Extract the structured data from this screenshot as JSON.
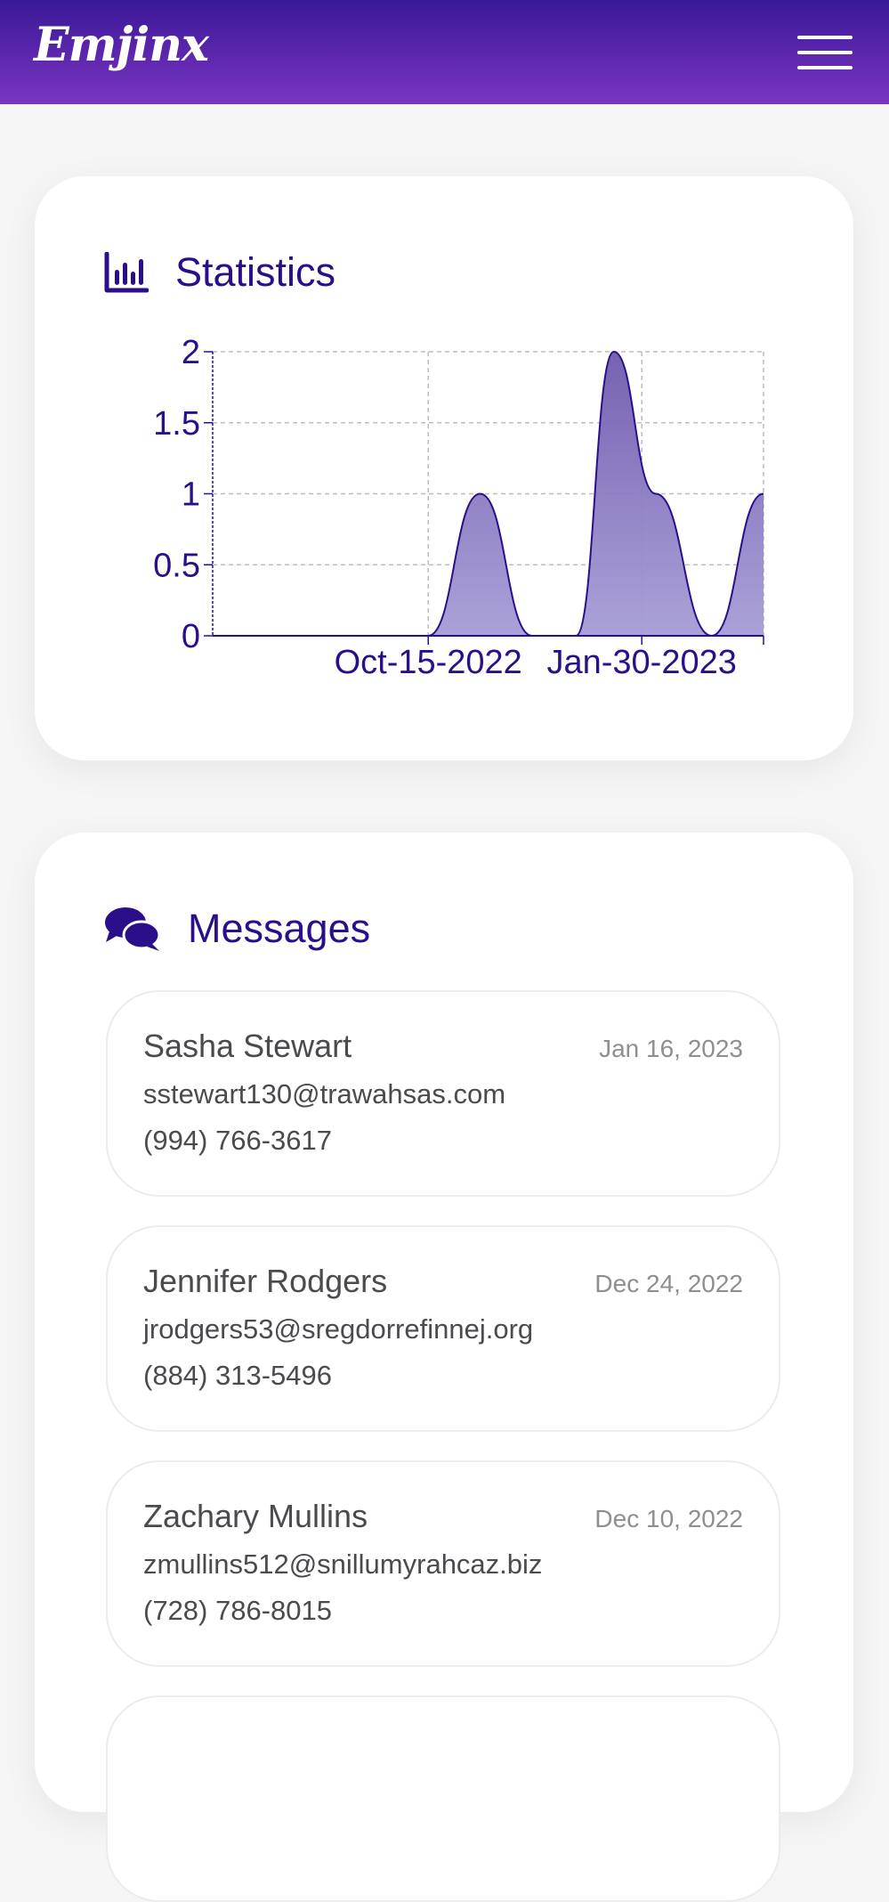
{
  "header": {
    "logo_text": "Emjinx",
    "menu_icon": "hamburger-menu-icon",
    "background_colors": [
      "#3a1896",
      "#7a35c2"
    ]
  },
  "statistics": {
    "title": "Statistics",
    "icon": "bar-chart-icon",
    "accent_color": "#2b0f8a",
    "chart_data": {
      "type": "area",
      "title": "",
      "xlabel": "",
      "ylabel": "",
      "ylim": [
        0,
        2
      ],
      "y_ticks": [
        "0",
        "0.5",
        "1",
        "1.5",
        "2"
      ],
      "x_ticks": [
        "Oct-15-2022",
        "Jan-30-2023"
      ],
      "grid": true,
      "series": [
        {
          "values_by_date": [
            {
              "x": "Jun-29-2022",
              "y": 0
            },
            {
              "x": "Oct-15-2022",
              "y": 0
            },
            {
              "x": "Nov-10-2022",
              "y": 1
            },
            {
              "x": "Dec-06-2022",
              "y": 0
            },
            {
              "x": "Dec-28-2022",
              "y": 0
            },
            {
              "x": "Jan-16-2023",
              "y": 2
            },
            {
              "x": "Feb-06-2023",
              "y": 1
            },
            {
              "x": "Mar-06-2023",
              "y": 0
            },
            {
              "x": "Apr-01-2023",
              "y": 1
            }
          ]
        }
      ],
      "fill_color": "#7c6bb8",
      "line_color": "#2b0f8a"
    }
  },
  "messages": {
    "title": "Messages",
    "icon": "chat-bubbles-icon",
    "items": [
      {
        "name": "Sasha Stewart",
        "date": "Jan 16, 2023",
        "email": "sstewart130@trawahsas.com",
        "phone": "(994) 766-3617"
      },
      {
        "name": "Jennifer Rodgers",
        "date": "Dec 24, 2022",
        "email": "jrodgers53@sregdorrefinnej.org",
        "phone": "(884) 313-5496"
      },
      {
        "name": "Zachary Mullins",
        "date": "Dec 10, 2022",
        "email": "zmullins512@snillumyrahcaz.biz",
        "phone": "(728) 786-8015"
      }
    ]
  }
}
